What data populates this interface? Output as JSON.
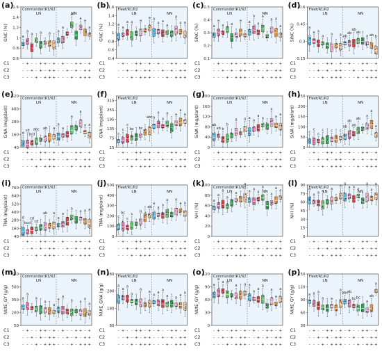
{
  "figure": {
    "panels_note": "16 box-plot panels in a 4x4 grid",
    "groups": [
      "LN",
      "NN"
    ],
    "c_rows": [
      "C1",
      "C2",
      "C3"
    ],
    "c_matrix": [
      [
        "-",
        "+",
        "-",
        "-",
        "+",
        "+",
        "-",
        "+"
      ],
      [
        "-",
        "-",
        "+",
        "-",
        "+",
        "-",
        "+",
        "+"
      ],
      [
        "-",
        "-",
        "-",
        "+",
        "-",
        "+",
        "+",
        "+"
      ]
    ],
    "colors": [
      "#4db3e6",
      "#e26fa1",
      "#e0303a",
      "#5cc05c",
      "#26a24b",
      "#f3a6c6",
      "#ef8a26",
      "#f0b98a"
    ],
    "panel_bg": "#eaf4fa"
  },
  "chart_data": [
    {
      "letter": "(a)",
      "variety": "Commander/R1/R2",
      "ylabel": "GNC (%)",
      "type": "box",
      "ymin": 0.6,
      "ymax": 1.6,
      "ticks": [
        0.6,
        0.8,
        1.0,
        1.2,
        1.4,
        1.6
      ],
      "medians": [
        0.88,
        0.92,
        0.8,
        0.95,
        0.86,
        0.9,
        0.88,
        0.86,
        0.95,
        0.96,
        1.08,
        1.25,
        1.05,
        1.2,
        1.1,
        1.06
      ],
      "sig": [
        "a",
        "a",
        "a",
        "",
        "a",
        "",
        "a",
        "",
        "a",
        "a",
        "",
        "a",
        "",
        "a",
        "a",
        "a"
      ]
    },
    {
      "letter": "(b)",
      "variety": "Fleet/R1/R2",
      "ylabel": "GNC (%)",
      "type": "box",
      "ymin": 0.4,
      "ymax": 1.6,
      "ticks": [
        0.4,
        0.6,
        0.8,
        1.0,
        1.2,
        1.4,
        1.6
      ],
      "medians": [
        0.9,
        0.95,
        1.0,
        0.92,
        0.98,
        1.0,
        1.05,
        1.1,
        1.0,
        1.02,
        0.98,
        1.0,
        0.97,
        1.05,
        1.02,
        0.95
      ],
      "sig": [
        "a",
        "a",
        "a",
        "a",
        "",
        "a",
        "",
        "a",
        "a",
        "a",
        "a",
        "a",
        "",
        "a",
        "a",
        "a"
      ]
    },
    {
      "letter": "(c)",
      "variety": "Commander/R1/R2",
      "ylabel": "SiNC (%)",
      "type": "box",
      "ymin": 0.1,
      "ymax": 0.5,
      "ticks": [
        0.1,
        0.2,
        0.3,
        0.4,
        0.5
      ],
      "medians": [
        0.28,
        0.3,
        0.3,
        0.32,
        0.26,
        0.28,
        0.3,
        0.28,
        0.3,
        0.32,
        0.3,
        0.33,
        0.27,
        0.32,
        0.3,
        0.28
      ],
      "sig": [
        "a",
        "a",
        "a",
        "",
        "a",
        "",
        "a",
        "",
        "a",
        "a",
        "a",
        "a",
        "",
        "a",
        "a",
        "a"
      ]
    },
    {
      "letter": "(d)",
      "variety": "Fleet/R1/R2",
      "ylabel": "SiNC (%)",
      "type": "box",
      "ymin": 0.15,
      "ymax": 0.6,
      "ticks": [
        0.15,
        0.3,
        0.45,
        0.6
      ],
      "medians": [
        0.3,
        0.3,
        0.28,
        0.28,
        0.26,
        0.24,
        0.26,
        0.25,
        0.28,
        0.28,
        0.28,
        0.3,
        0.3,
        0.28,
        0.26,
        0.22
      ],
      "sig": [
        "a",
        "a",
        "a",
        "a",
        "",
        "a",
        "",
        "a",
        "ab",
        "ab",
        "ab",
        "ab",
        "",
        "a",
        "ab",
        "b"
      ]
    },
    {
      "letter": "(e)",
      "variety": "Commander/R1/R2",
      "ylabel": "GNA (mg/plant)",
      "type": "box",
      "ymin": 40,
      "ymax": 520,
      "ticks": [
        40,
        160,
        280,
        400,
        520
      ],
      "medians": [
        75,
        70,
        80,
        95,
        110,
        120,
        130,
        135,
        140,
        150,
        160,
        200,
        220,
        260,
        180,
        150
      ],
      "sig": [
        "d",
        "cd",
        "bcd",
        "abc",
        "",
        "ab",
        "",
        "a",
        "a",
        "a",
        "",
        "a",
        "",
        "a",
        "a",
        "a"
      ]
    },
    {
      "letter": "(f)",
      "variety": "Fleet/R1/R2",
      "ylabel": "GNA (mg/plant)",
      "type": "box",
      "ymin": 15,
      "ymax": 345,
      "ticks": [
        15,
        75,
        135,
        195,
        255,
        315
      ],
      "medians": [
        55,
        60,
        70,
        75,
        80,
        90,
        110,
        120,
        150,
        160,
        150,
        165,
        140,
        170,
        175,
        180
      ],
      "sig": [
        "c",
        "c",
        "c",
        "bc",
        "",
        "bc",
        "",
        "abc",
        "a",
        "a",
        "a",
        "a",
        "",
        "a",
        "a",
        "a"
      ]
    },
    {
      "letter": "(g)",
      "variety": "Commander/R1/R2",
      "ylabel": "SiNA (mg/plant)",
      "type": "box",
      "ymin": 0,
      "ymax": 200,
      "ticks": [
        0,
        40,
        80,
        120,
        160,
        200
      ],
      "medians": [
        40,
        45,
        30,
        35,
        45,
        60,
        55,
        70,
        60,
        70,
        75,
        85,
        80,
        95,
        85,
        80
      ],
      "sig": [
        "ab",
        "ab",
        "b",
        "b",
        "",
        "a",
        "",
        "a",
        "a",
        "a",
        "a",
        "a",
        "",
        "a",
        "a",
        "a"
      ]
    },
    {
      "letter": "(h)",
      "variety": "Fleet/R1/R2",
      "ylabel": "SiNA (mg/plant)",
      "type": "box",
      "ymin": 0,
      "ymax": 250,
      "ticks": [
        0,
        50,
        100,
        150,
        200,
        250
      ],
      "medians": [
        30,
        28,
        30,
        32,
        35,
        38,
        40,
        45,
        50,
        60,
        65,
        80,
        90,
        100,
        110,
        60
      ],
      "sig": [
        "c",
        "c",
        "c",
        "c",
        "",
        "c",
        "",
        "c",
        "ab",
        "ab",
        "ab",
        "ab",
        "",
        "a",
        "a",
        "a"
      ]
    },
    {
      "letter": "(i)",
      "variety": "Commander/R1/R2",
      "ylabel": "TNA (mg/plant)",
      "type": "box",
      "ymin": 40,
      "ymax": 800,
      "ticks": [
        40,
        160,
        280,
        400,
        520,
        640,
        760
      ],
      "medians": [
        110,
        105,
        125,
        150,
        170,
        180,
        190,
        200,
        205,
        215,
        260,
        320,
        280,
        300,
        260,
        230
      ],
      "sig": [
        "d",
        "bcd",
        "cd",
        "cd",
        "",
        "ab",
        "",
        "a",
        "a",
        "a",
        "",
        "a",
        "",
        "a",
        "a",
        "a"
      ]
    },
    {
      "letter": "(j)",
      "variety": "Fleet/R1/R2",
      "ylabel": "TNA (mg/plant)",
      "type": "box",
      "ymin": 0,
      "ymax": 500,
      "ticks": [
        0,
        100,
        200,
        300,
        400,
        500
      ],
      "medians": [
        90,
        95,
        85,
        100,
        120,
        140,
        180,
        200,
        200,
        210,
        200,
        220,
        210,
        240,
        250,
        220
      ],
      "sig": [
        "c",
        "bc",
        "c",
        "c",
        "",
        "b",
        "",
        "ab",
        "a",
        "a",
        "a",
        "a",
        "",
        "a",
        "a",
        "a"
      ]
    },
    {
      "letter": "(k)",
      "variety": "Commander/R1/R2",
      "ylabel": "NHI (%)",
      "type": "box",
      "ymin": 0,
      "ymax": 100,
      "ticks": [
        0,
        20,
        40,
        60,
        80,
        100
      ],
      "medians": [
        55,
        60,
        62,
        58,
        65,
        70,
        72,
        75,
        70,
        68,
        72,
        75,
        60,
        65,
        70,
        75
      ],
      "sig": [
        "a",
        "a",
        "a",
        "a",
        "",
        "a",
        "",
        "a",
        "a",
        "a",
        "a",
        "a",
        "",
        "a",
        "a",
        "a"
      ]
    },
    {
      "letter": "(l)",
      "variety": "Fleet/R1/R2",
      "ylabel": "NHI (%)",
      "type": "box",
      "ymin": 0,
      "ymax": 90,
      "ticks": [
        0,
        15,
        30,
        45,
        60,
        75,
        90
      ],
      "medians": [
        62,
        60,
        58,
        55,
        60,
        62,
        65,
        70,
        68,
        70,
        65,
        70,
        62,
        68,
        66,
        70
      ],
      "sig": [
        "a",
        "a",
        "a",
        "a",
        "",
        "a",
        "",
        "a",
        "a",
        "a",
        "a",
        "a",
        "",
        "a",
        "a",
        "a"
      ]
    },
    {
      "letter": "(m)",
      "variety": "Commander/R1/R2",
      "ylabel": "NUtE_GY (g/g)",
      "type": "box",
      "ymin": 50,
      "ymax": 650,
      "ticks": [
        50,
        200,
        350,
        500,
        650
      ],
      "medians": [
        260,
        270,
        250,
        240,
        230,
        220,
        215,
        205,
        230,
        225,
        210,
        200,
        215,
        200,
        195,
        195
      ],
      "sig": [
        "a",
        "a",
        "",
        "a",
        "",
        "a",
        "",
        "a",
        "a",
        "a",
        "",
        "a",
        "",
        "a",
        "a",
        "a"
      ]
    },
    {
      "letter": "(n)",
      "variety": "Fleet/R1/R2",
      "ylabel": "NUtE_GNA (g/g)",
      "type": "box",
      "ymin": 80,
      "ymax": 380,
      "ticks": [
        80,
        180,
        280,
        380
      ],
      "medians": [
        230,
        240,
        235,
        220,
        215,
        210,
        200,
        205,
        215,
        210,
        205,
        200,
        205,
        200,
        195,
        190
      ],
      "sig": [
        "a",
        "a",
        "a",
        "a",
        "",
        "a",
        "",
        "a",
        "a",
        "a",
        "a",
        "a",
        "",
        "a",
        "a",
        "a"
      ]
    },
    {
      "letter": "(o)",
      "variety": "Commander/R1/R2",
      "ylabel": "NUtE_GY (g/g)",
      "type": "box",
      "ymin": 0,
      "ymax": 120,
      "ticks": [
        0,
        30,
        60,
        90,
        120
      ],
      "medians": [
        70,
        75,
        80,
        72,
        70,
        68,
        70,
        75,
        65,
        62,
        60,
        60,
        45,
        55,
        50,
        60
      ],
      "sig": [
        "a",
        "a",
        "a",
        "a",
        "",
        "a",
        "",
        "a",
        "a",
        "a",
        "a",
        "a",
        "",
        "a",
        "a",
        "a"
      ]
    },
    {
      "letter": "(p)",
      "variety": "Fleet/R1/R2",
      "ylabel": "NUtE_GY (g/g)",
      "type": "box",
      "ymin": 30,
      "ymax": 150,
      "ticks": [
        30,
        60,
        90,
        120,
        150
      ],
      "medians": [
        85,
        80,
        75,
        72,
        70,
        75,
        70,
        80,
        85,
        80,
        75,
        70,
        70,
        65,
        70,
        110
      ],
      "sig": [
        "a",
        "a",
        "a",
        "a",
        "",
        "a",
        "",
        "a",
        "abc",
        "ab",
        "bc",
        "bc",
        "",
        "a",
        "ab",
        "a"
      ]
    }
  ]
}
